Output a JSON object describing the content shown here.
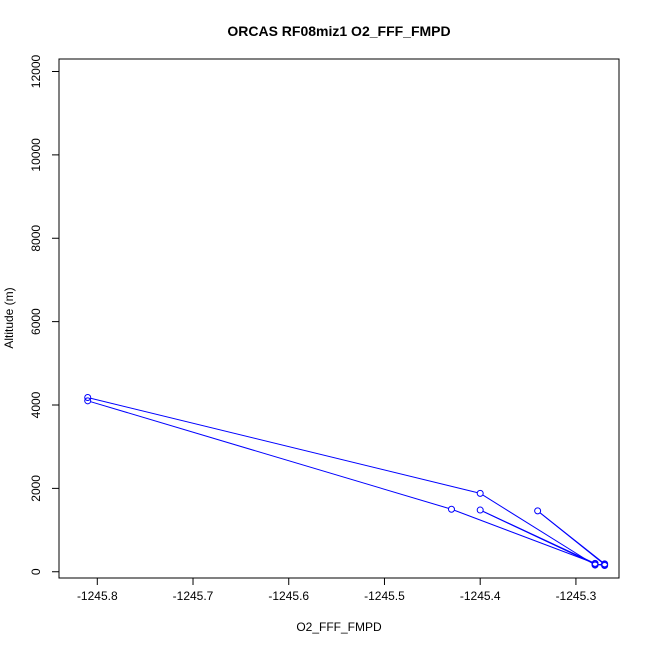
{
  "chart_data": {
    "type": "line",
    "title": "ORCAS RF08miz1 O2_FFF_FMPD",
    "xlabel": "O2_FFF_FMPD",
    "ylabel": "Altitude (m)",
    "xlim": [
      -1245.84,
      -1245.255
    ],
    "ylim": [
      -150,
      12300
    ],
    "xticks": [
      -1245.8,
      -1245.7,
      -1245.6,
      -1245.5,
      -1245.4,
      -1245.3
    ],
    "xtick_labels": [
      "-1245.8",
      "-1245.7",
      "-1245.6",
      "-1245.5",
      "-1245.4",
      "-1245.3"
    ],
    "yticks": [
      0,
      2000,
      4000,
      6000,
      8000,
      10000,
      12000
    ],
    "ytick_labels": [
      "0",
      "2000",
      "4000",
      "6000",
      "8000",
      "10000",
      "12000"
    ],
    "grid": false,
    "colors": {
      "series": "#0000ff",
      "axis": "#000000",
      "background": "#ffffff"
    },
    "series": [
      {
        "points": [
          {
            "x": -1245.27,
            "y": 170
          },
          {
            "x": -1245.34,
            "y": 1460
          },
          {
            "x": -1245.27,
            "y": 190
          },
          {
            "x": -1245.28,
            "y": 160
          },
          {
            "x": -1245.4,
            "y": 1880
          },
          {
            "x": -1245.81,
            "y": 4180
          },
          {
            "x": -1245.81,
            "y": 4100
          },
          {
            "x": -1245.43,
            "y": 1500
          },
          {
            "x": -1245.28,
            "y": 200
          },
          {
            "x": -1245.4,
            "y": 1480
          },
          {
            "x": -1245.28,
            "y": 180
          },
          {
            "x": -1245.27,
            "y": 150
          }
        ]
      }
    ]
  }
}
